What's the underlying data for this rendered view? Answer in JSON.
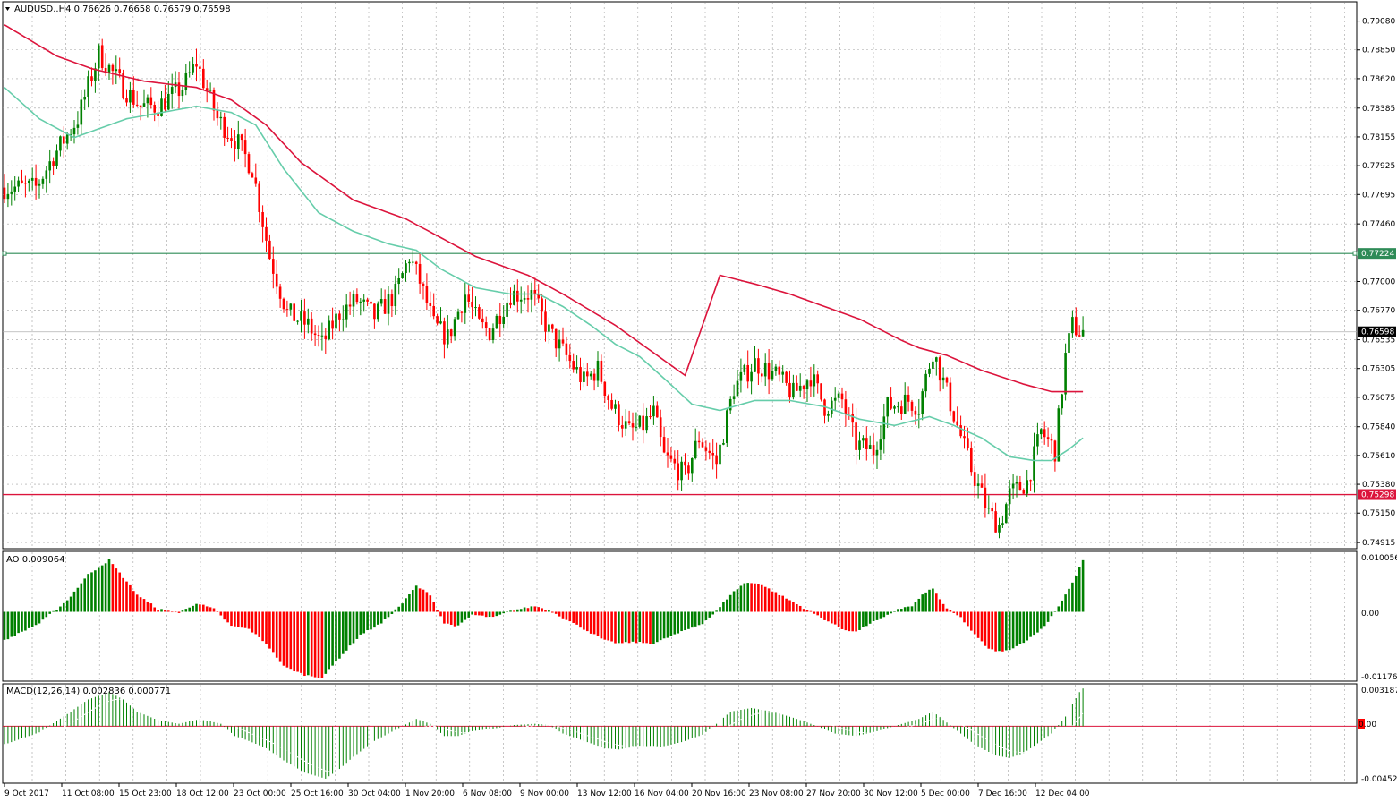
{
  "header": {
    "symbol": "AUDUSD..H4",
    "ohlc": "0.76626 0.76658 0.76579 0.76598",
    "full_label": "AUDUSD..H4  0.76626 0.76658 0.76579 0.76598"
  },
  "price_axis": {
    "ticks": [
      "0.79080",
      "0.78850",
      "0.78620",
      "0.78385",
      "0.78155",
      "0.77925",
      "0.77695",
      "0.77460",
      "0.77224",
      "0.77000",
      "0.76770",
      "0.76598",
      "0.76535",
      "0.76305",
      "0.76075",
      "0.75840",
      "0.75610",
      "0.75380",
      "0.75298",
      "0.75150",
      "0.74915"
    ],
    "current_price": "0.76598",
    "level_green": "0.77224",
    "level_red": "0.75298"
  },
  "time_axis": {
    "labels": [
      "9 Oct 2017",
      "11 Oct 08:00",
      "15 Oct 23:00",
      "18 Oct 12:00",
      "23 Oct 00:00",
      "25 Oct 16:00",
      "30 Oct 04:00",
      "1 Nov 20:00",
      "6 Nov 08:00",
      "9 Nov 00:00",
      "13 Nov 12:00",
      "16 Nov 04:00",
      "20 Nov 16:00",
      "23 Nov 08:00",
      "27 Nov 20:00",
      "30 Nov 12:00",
      "5 Dec 00:00",
      "7 Dec 16:00",
      "12 Dec 04:00"
    ]
  },
  "ao_panel": {
    "label": "AO 0.009064",
    "axis_top": "0.010056",
    "axis_zero": "0.00",
    "axis_bottom": "-0.011769"
  },
  "macd_panel": {
    "label": "MACD(12,26,14) 0.002836 0.000771",
    "axis_top": "0.003187",
    "axis_zero": "0.00",
    "axis_bottom": "-0.004525"
  },
  "colors": {
    "bull": "#008000",
    "bear": "#ff0000",
    "ma_slow": "#dc143c",
    "ma_fast": "#66cdaa",
    "grid": "#a0a0a0",
    "level_green": "#2e8b57",
    "level_red": "#dc143c"
  },
  "chart_data": {
    "type": "candlestick",
    "symbol": "AUDUSD",
    "timeframe": "H4",
    "ylim": [
      0.7488,
      0.7922
    ],
    "anchors": [
      [
        0,
        0.7775
      ],
      [
        10,
        0.7775
      ],
      [
        15,
        0.78
      ],
      [
        22,
        0.783
      ],
      [
        28,
        0.7882
      ],
      [
        35,
        0.7855
      ],
      [
        40,
        0.784
      ],
      [
        45,
        0.784
      ],
      [
        52,
        0.7855
      ],
      [
        56,
        0.7875
      ],
      [
        62,
        0.783
      ],
      [
        68,
        0.781
      ],
      [
        72,
        0.779
      ],
      [
        77,
        0.772
      ],
      [
        82,
        0.7675
      ],
      [
        88,
        0.7665
      ],
      [
        92,
        0.765
      ],
      [
        97,
        0.7675
      ],
      [
        102,
        0.7685
      ],
      [
        107,
        0.7672
      ],
      [
        113,
        0.769
      ],
      [
        117,
        0.772
      ],
      [
        120,
        0.77
      ],
      [
        124,
        0.7665
      ],
      [
        128,
        0.7655
      ],
      [
        133,
        0.769
      ],
      [
        137,
        0.7665
      ],
      [
        140,
        0.766
      ],
      [
        146,
        0.769
      ],
      [
        152,
        0.769
      ],
      [
        157,
        0.766
      ],
      [
        162,
        0.764
      ],
      [
        167,
        0.762
      ],
      [
        171,
        0.763
      ],
      [
        175,
        0.76
      ],
      [
        180,
        0.758
      ],
      [
        184,
        0.7585
      ],
      [
        187,
        0.7595
      ],
      [
        190,
        0.756
      ],
      [
        196,
        0.7545
      ],
      [
        200,
        0.7575
      ],
      [
        205,
        0.7555
      ],
      [
        210,
        0.7615
      ],
      [
        216,
        0.7635
      ],
      [
        222,
        0.7625
      ],
      [
        227,
        0.761
      ],
      [
        232,
        0.7625
      ],
      [
        236,
        0.76
      ],
      [
        241,
        0.7605
      ],
      [
        245,
        0.757
      ],
      [
        250,
        0.7565
      ],
      [
        254,
        0.76
      ],
      [
        260,
        0.7605
      ],
      [
        263,
        0.76
      ],
      [
        267,
        0.7645
      ],
      [
        270,
        0.762
      ],
      [
        274,
        0.7585
      ],
      [
        278,
        0.755
      ],
      [
        283,
        0.7515
      ],
      [
        286,
        0.7505
      ],
      [
        289,
        0.753
      ],
      [
        294,
        0.754
      ],
      [
        298,
        0.758
      ],
      [
        302,
        0.7565
      ],
      [
        305,
        0.764
      ],
      [
        307,
        0.7665
      ],
      [
        309,
        0.766
      ]
    ],
    "ao_anchors": [
      [
        0,
        -0.005
      ],
      [
        10,
        -0.002
      ],
      [
        18,
        0.002
      ],
      [
        24,
        0.0065
      ],
      [
        30,
        0.009
      ],
      [
        34,
        0.006
      ],
      [
        38,
        0.003
      ],
      [
        44,
        0.0005
      ],
      [
        50,
        -0.0002
      ],
      [
        55,
        0.0015
      ],
      [
        60,
        0.0005
      ],
      [
        65,
        -0.0025
      ],
      [
        70,
        -0.003
      ],
      [
        75,
        -0.0055
      ],
      [
        80,
        -0.0095
      ],
      [
        86,
        -0.011
      ],
      [
        91,
        -0.0115
      ],
      [
        96,
        -0.008
      ],
      [
        102,
        -0.004
      ],
      [
        108,
        -0.002
      ],
      [
        114,
        0.0015
      ],
      [
        118,
        0.0045
      ],
      [
        122,
        0.003
      ],
      [
        126,
        -0.002
      ],
      [
        130,
        -0.0025
      ],
      [
        134,
        -0.0005
      ],
      [
        140,
        -0.001
      ],
      [
        146,
        0.0003
      ],
      [
        152,
        0.001
      ],
      [
        156,
        0.0003
      ],
      [
        160,
        -0.001
      ],
      [
        166,
        -0.003
      ],
      [
        172,
        -0.005
      ],
      [
        176,
        -0.0055
      ],
      [
        180,
        -0.0053
      ],
      [
        186,
        -0.0055
      ],
      [
        192,
        -0.004
      ],
      [
        200,
        -0.002
      ],
      [
        204,
        0.0001
      ],
      [
        208,
        0.003
      ],
      [
        212,
        0.005
      ],
      [
        216,
        0.005
      ],
      [
        222,
        0.003
      ],
      [
        228,
        0.001
      ],
      [
        234,
        -0.001
      ],
      [
        240,
        -0.003
      ],
      [
        244,
        -0.0035
      ],
      [
        248,
        -0.002
      ],
      [
        252,
        -0.001
      ],
      [
        256,
        0.0005
      ],
      [
        260,
        0.001
      ],
      [
        264,
        0.0035
      ],
      [
        266,
        0.004
      ],
      [
        270,
        0.0005
      ],
      [
        274,
        -0.001
      ],
      [
        278,
        -0.004
      ],
      [
        282,
        -0.0065
      ],
      [
        286,
        -0.007
      ],
      [
        290,
        -0.006
      ],
      [
        294,
        -0.0045
      ],
      [
        298,
        -0.0025
      ],
      [
        302,
        0.001
      ],
      [
        306,
        0.005
      ],
      [
        309,
        0.009
      ]
    ],
    "macd_anchors": [
      [
        0,
        -0.0015
      ],
      [
        10,
        -0.0005
      ],
      [
        18,
        0.001
      ],
      [
        24,
        0.0022
      ],
      [
        30,
        0.0028
      ],
      [
        34,
        0.0022
      ],
      [
        38,
        0.0012
      ],
      [
        44,
        0.0005
      ],
      [
        50,
        0.0002
      ],
      [
        56,
        0.0006
      ],
      [
        62,
        0.0002
      ],
      [
        66,
        -0.0008
      ],
      [
        70,
        -0.0012
      ],
      [
        75,
        -0.0018
      ],
      [
        80,
        -0.0028
      ],
      [
        86,
        -0.0038
      ],
      [
        92,
        -0.0043
      ],
      [
        96,
        -0.0035
      ],
      [
        100,
        -0.0025
      ],
      [
        106,
        -0.0012
      ],
      [
        112,
        -0.0003
      ],
      [
        118,
        0.0006
      ],
      [
        122,
        0.0002
      ],
      [
        126,
        -0.0008
      ],
      [
        130,
        -0.0008
      ],
      [
        134,
        -0.0004
      ],
      [
        140,
        -0.0002
      ],
      [
        146,
        0.0001
      ],
      [
        152,
        0.0002
      ],
      [
        156,
        0.0001
      ],
      [
        160,
        -0.0006
      ],
      [
        166,
        -0.0012
      ],
      [
        172,
        -0.0018
      ],
      [
        176,
        -0.0019
      ],
      [
        182,
        -0.0016
      ],
      [
        188,
        -0.0017
      ],
      [
        194,
        -0.0013
      ],
      [
        200,
        -0.0007
      ],
      [
        204,
        0.0002
      ],
      [
        208,
        0.0012
      ],
      [
        214,
        0.0015
      ],
      [
        220,
        0.0012
      ],
      [
        226,
        0.0007
      ],
      [
        232,
        0.0001
      ],
      [
        238,
        -0.0006
      ],
      [
        244,
        -0.0008
      ],
      [
        250,
        -0.0004
      ],
      [
        256,
        0.0001
      ],
      [
        262,
        0.0006
      ],
      [
        266,
        0.0012
      ],
      [
        270,
        0.0003
      ],
      [
        274,
        -0.0006
      ],
      [
        278,
        -0.0015
      ],
      [
        284,
        -0.0024
      ],
      [
        288,
        -0.0026
      ],
      [
        292,
        -0.0022
      ],
      [
        296,
        -0.0014
      ],
      [
        300,
        -0.0006
      ],
      [
        304,
        0.0008
      ],
      [
        308,
        0.0028
      ],
      [
        309,
        0.0031
      ]
    ],
    "ma_slow_anchors": [
      [
        0,
        0.7905
      ],
      [
        15,
        0.788
      ],
      [
        25,
        0.787
      ],
      [
        40,
        0.786
      ],
      [
        55,
        0.7855
      ],
      [
        65,
        0.7845
      ],
      [
        75,
        0.7825
      ],
      [
        85,
        0.7795
      ],
      [
        100,
        0.7765
      ],
      [
        115,
        0.775
      ],
      [
        125,
        0.7735
      ],
      [
        135,
        0.772
      ],
      [
        150,
        0.7705
      ],
      [
        160,
        0.769
      ],
      [
        175,
        0.7665
      ],
      [
        185,
        0.7645
      ],
      [
        195,
        0.7625
      ],
      [
        205,
        0.7705
      ],
      [
        205,
        0.7705
      ],
      [
        215,
        0.7698
      ],
      [
        225,
        0.769
      ],
      [
        235,
        0.768
      ],
      [
        245,
        0.767
      ],
      [
        257,
        0.7653
      ],
      [
        262,
        0.7647
      ],
      [
        270,
        0.7641
      ],
      [
        280,
        0.7629
      ],
      [
        292,
        0.7618
      ],
      [
        300,
        0.7612
      ],
      [
        309,
        0.7612
      ]
    ],
    "ma_fast_anchors": [
      [
        0,
        0.7855
      ],
      [
        10,
        0.783
      ],
      [
        20,
        0.7815
      ],
      [
        25,
        0.782
      ],
      [
        35,
        0.783
      ],
      [
        45,
        0.7835
      ],
      [
        55,
        0.784
      ],
      [
        65,
        0.7835
      ],
      [
        72,
        0.7825
      ],
      [
        80,
        0.779
      ],
      [
        90,
        0.7755
      ],
      [
        100,
        0.774
      ],
      [
        110,
        0.773
      ],
      [
        118,
        0.7725
      ],
      [
        125,
        0.771
      ],
      [
        135,
        0.7695
      ],
      [
        145,
        0.769
      ],
      [
        153,
        0.769
      ],
      [
        160,
        0.768
      ],
      [
        168,
        0.7665
      ],
      [
        175,
        0.765
      ],
      [
        182,
        0.764
      ],
      [
        190,
        0.762
      ],
      [
        197,
        0.7602
      ],
      [
        205,
        0.7597
      ],
      [
        215,
        0.7605
      ],
      [
        225,
        0.7605
      ],
      [
        235,
        0.76
      ],
      [
        245,
        0.759
      ],
      [
        255,
        0.7585
      ],
      [
        265,
        0.7592
      ],
      [
        272,
        0.7585
      ],
      [
        280,
        0.7575
      ],
      [
        288,
        0.756
      ],
      [
        295,
        0.7557
      ],
      [
        300,
        0.7557
      ],
      [
        305,
        0.7566
      ],
      [
        309,
        0.7575
      ]
    ]
  }
}
